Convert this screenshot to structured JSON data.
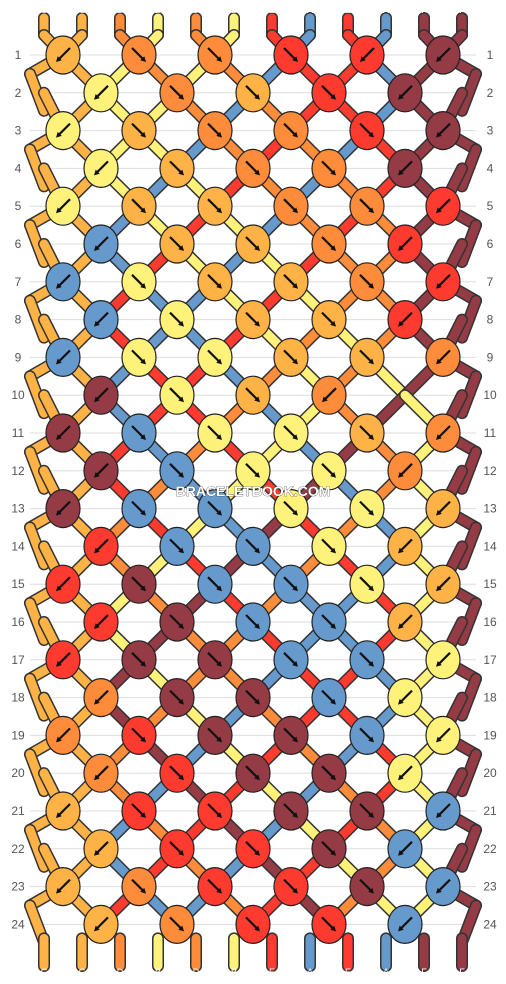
{
  "watermark": "BRACELETBOOK.COM",
  "colors": {
    "C": "#ffb347",
    "D": "#ff8c3a",
    "B": "#fff27a",
    "E": "#ff3b30",
    "A": "#6699cc",
    "F": "#943b45"
  },
  "strings": {
    "top": [
      "C",
      "C",
      "D",
      "B",
      "D",
      "B",
      "E",
      "A",
      "E",
      "A",
      "F",
      "F"
    ],
    "bottom": [
      "C",
      "C",
      "D",
      "B",
      "D",
      "B",
      "E",
      "A",
      "E",
      "A",
      "F",
      "F"
    ]
  },
  "row_numbers": [
    "1",
    "2",
    "3",
    "4",
    "5",
    "6",
    "7",
    "8",
    "9",
    "10",
    "11",
    "12",
    "13",
    "14",
    "15",
    "16",
    "17",
    "18",
    "19",
    "20",
    "21",
    "22",
    "23",
    "24"
  ],
  "knots": [
    [
      [
        "C",
        "SW"
      ],
      [
        "D",
        "SE"
      ],
      [
        "D",
        "SE"
      ],
      [
        "E",
        "SE"
      ],
      [
        "E",
        "SW"
      ],
      [
        "F",
        "SW"
      ]
    ],
    [
      [
        "B",
        "SW"
      ],
      [
        "D",
        "SE"
      ],
      [
        "C",
        "SE"
      ],
      [
        "E",
        "SE"
      ],
      [
        "F",
        "SW"
      ]
    ],
    [
      [
        "B",
        "SW"
      ],
      [
        "C",
        "SE"
      ],
      [
        "D",
        "SE"
      ],
      [
        "D",
        "SE"
      ],
      [
        "E",
        "SE"
      ],
      [
        "F",
        "SW"
      ]
    ],
    [
      [
        "B",
        "SW"
      ],
      [
        "C",
        "SE"
      ],
      [
        "D",
        "SE"
      ],
      [
        "D",
        "SE"
      ],
      [
        "F",
        "SW"
      ]
    ],
    [
      [
        "B",
        "SW"
      ],
      [
        "C",
        "SE"
      ],
      [
        "C",
        "SE"
      ],
      [
        "D",
        "SE"
      ],
      [
        "D",
        "SE"
      ],
      [
        "E",
        "SW"
      ]
    ],
    [
      [
        "A",
        "SW"
      ],
      [
        "C",
        "SE"
      ],
      [
        "C",
        "SE"
      ],
      [
        "D",
        "SE"
      ],
      [
        "E",
        "SW"
      ]
    ],
    [
      [
        "A",
        "SW"
      ],
      [
        "B",
        "SE"
      ],
      [
        "C",
        "SE"
      ],
      [
        "C",
        "SE"
      ],
      [
        "D",
        "SE"
      ],
      [
        "E",
        "SW"
      ]
    ],
    [
      [
        "A",
        "SW"
      ],
      [
        "B",
        "SE"
      ],
      [
        "C",
        "SE"
      ],
      [
        "C",
        "SE"
      ],
      [
        "E",
        "SW"
      ]
    ],
    [
      [
        "A",
        "SW"
      ],
      [
        "B",
        "SE"
      ],
      [
        "B",
        "SE"
      ],
      [
        "C",
        "SE"
      ],
      [
        "C",
        "SE"
      ],
      [
        "D",
        "SW"
      ]
    ],
    [
      [
        "F",
        "SW"
      ],
      [
        "B",
        "SE"
      ],
      [
        "C",
        "SE"
      ],
      [
        "D",
        "SW"
      ]
    ],
    [
      [
        "F",
        "SW"
      ],
      [
        "A",
        "SE"
      ],
      [
        "B",
        "SE"
      ],
      [
        "B",
        "SE"
      ],
      [
        "C",
        "SE"
      ],
      [
        "D",
        "SW"
      ]
    ],
    [
      [
        "F",
        "SW"
      ],
      [
        "A",
        "SE"
      ],
      [
        "B",
        "SE"
      ],
      [
        "B",
        "SE"
      ],
      [
        "D",
        "SW"
      ]
    ],
    [
      [
        "F",
        "SW"
      ],
      [
        "A",
        "SE"
      ],
      [
        "A",
        "SE"
      ],
      [
        "B",
        "SE"
      ],
      [
        "B",
        "SE"
      ],
      [
        "C",
        "SW"
      ]
    ],
    [
      [
        "E",
        "SW"
      ],
      [
        "A",
        "SE"
      ],
      [
        "A",
        "SE"
      ],
      [
        "B",
        "SE"
      ],
      [
        "C",
        "SW"
      ]
    ],
    [
      [
        "E",
        "SW"
      ],
      [
        "F",
        "SE"
      ],
      [
        "A",
        "SE"
      ],
      [
        "A",
        "SE"
      ],
      [
        "B",
        "SE"
      ],
      [
        "C",
        "SW"
      ]
    ],
    [
      [
        "E",
        "SW"
      ],
      [
        "F",
        "SE"
      ],
      [
        "A",
        "SE"
      ],
      [
        "A",
        "SE"
      ],
      [
        "C",
        "SW"
      ]
    ],
    [
      [
        "E",
        "SW"
      ],
      [
        "F",
        "SE"
      ],
      [
        "F",
        "SE"
      ],
      [
        "A",
        "SE"
      ],
      [
        "A",
        "SE"
      ],
      [
        "B",
        "SW"
      ]
    ],
    [
      [
        "D",
        "SW"
      ],
      [
        "F",
        "SE"
      ],
      [
        "F",
        "SE"
      ],
      [
        "A",
        "SE"
      ],
      [
        "B",
        "SW"
      ]
    ],
    [
      [
        "D",
        "SW"
      ],
      [
        "E",
        "SE"
      ],
      [
        "F",
        "SE"
      ],
      [
        "F",
        "SE"
      ],
      [
        "A",
        "SE"
      ],
      [
        "B",
        "SW"
      ]
    ],
    [
      [
        "D",
        "SW"
      ],
      [
        "E",
        "SE"
      ],
      [
        "F",
        "SE"
      ],
      [
        "F",
        "SE"
      ],
      [
        "B",
        "SW"
      ]
    ],
    [
      [
        "C",
        "SW"
      ],
      [
        "E",
        "SE"
      ],
      [
        "E",
        "SE"
      ],
      [
        "F",
        "SE"
      ],
      [
        "F",
        "SE"
      ],
      [
        "A",
        "SW"
      ]
    ],
    [
      [
        "C",
        "SW"
      ],
      [
        "E",
        "SE"
      ],
      [
        "E",
        "SE"
      ],
      [
        "F",
        "SE"
      ],
      [
        "A",
        "SW"
      ]
    ],
    [
      [
        "C",
        "SW"
      ],
      [
        "D",
        "SE"
      ],
      [
        "E",
        "SE"
      ],
      [
        "E",
        "SE"
      ],
      [
        "F",
        "SE"
      ],
      [
        "A",
        "SW"
      ]
    ],
    [
      [
        "C",
        "SW"
      ],
      [
        "D",
        "SE"
      ],
      [
        "E",
        "SE"
      ],
      [
        "E",
        "SE"
      ],
      [
        "A",
        "SW"
      ]
    ]
  ]
}
